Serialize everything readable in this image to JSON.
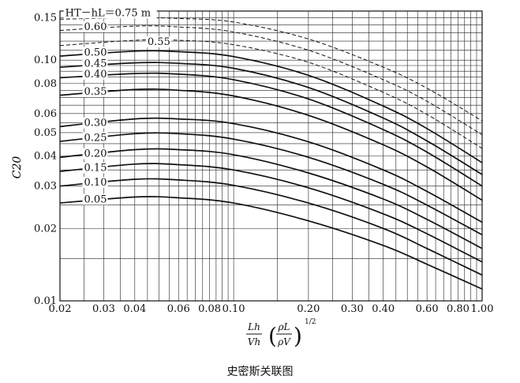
{
  "caption": "史密斯关联图",
  "chart_data": {
    "type": "line",
    "x_scale": "log",
    "y_scale": "log",
    "xlim": [
      0.02,
      1.0
    ],
    "ylim": [
      0.01,
      0.16
    ],
    "grid": true,
    "ylabel": "C20",
    "xlabel_parts": {
      "num": "Lh",
      "den": "Vh",
      "inner_num": "ρL",
      "inner_den": "ρV",
      "exponent": "1/2"
    },
    "x_ticks": [
      {
        "value": 0.02,
        "label": "0.02"
      },
      {
        "value": 0.03,
        "label": "0.03"
      },
      {
        "value": 0.04,
        "label": "0.04"
      },
      {
        "value": 0.06,
        "label": "0.06"
      },
      {
        "value": 0.08,
        "label": "0.08"
      },
      {
        "value": 0.1,
        "label": "0.10"
      },
      {
        "value": 0.2,
        "label": "0.20"
      },
      {
        "value": 0.3,
        "label": "0.30"
      },
      {
        "value": 0.4,
        "label": "0.40"
      },
      {
        "value": 0.6,
        "label": "0.60"
      },
      {
        "value": 0.8,
        "label": "0.80"
      },
      {
        "value": 1.0,
        "label": "1.00"
      }
    ],
    "y_ticks": [
      {
        "value": 0.15,
        "label": "0.15"
      },
      {
        "value": 0.1,
        "label": "0.10"
      },
      {
        "value": 0.08,
        "label": "0.08"
      },
      {
        "value": 0.06,
        "label": "0.06"
      },
      {
        "value": 0.05,
        "label": "0.05"
      },
      {
        "value": 0.04,
        "label": "0.04"
      },
      {
        "value": 0.03,
        "label": "0.03"
      },
      {
        "value": 0.02,
        "label": "0.02"
      },
      {
        "value": 0.01,
        "label": "0.01"
      }
    ],
    "series": [
      {
        "name": "0.05",
        "label": "0.05",
        "style": "solid",
        "points": [
          [
            0.02,
            0.0255
          ],
          [
            0.04,
            0.027
          ],
          [
            0.06,
            0.0268
          ],
          [
            0.1,
            0.0255
          ],
          [
            0.2,
            0.0215
          ],
          [
            0.4,
            0.017
          ],
          [
            0.6,
            0.0142
          ],
          [
            1.0,
            0.0112
          ]
        ]
      },
      {
        "name": "0.10",
        "label": "0.10",
        "style": "solid",
        "points": [
          [
            0.02,
            0.03
          ],
          [
            0.04,
            0.032
          ],
          [
            0.06,
            0.0318
          ],
          [
            0.1,
            0.0302
          ],
          [
            0.2,
            0.0255
          ],
          [
            0.4,
            0.02
          ],
          [
            0.6,
            0.0165
          ],
          [
            1.0,
            0.0128
          ]
        ]
      },
      {
        "name": "0.15",
        "label": "0.15",
        "style": "solid",
        "points": [
          [
            0.02,
            0.0345
          ],
          [
            0.04,
            0.037
          ],
          [
            0.06,
            0.0368
          ],
          [
            0.1,
            0.035
          ],
          [
            0.2,
            0.0295
          ],
          [
            0.4,
            0.023
          ],
          [
            0.6,
            0.019
          ],
          [
            1.0,
            0.0145
          ]
        ]
      },
      {
        "name": "0.20",
        "label": "0.20",
        "style": "solid",
        "points": [
          [
            0.02,
            0.0395
          ],
          [
            0.04,
            0.0425
          ],
          [
            0.06,
            0.0425
          ],
          [
            0.1,
            0.0405
          ],
          [
            0.2,
            0.034
          ],
          [
            0.4,
            0.0265
          ],
          [
            0.6,
            0.0218
          ],
          [
            1.0,
            0.0165
          ]
        ]
      },
      {
        "name": "0.25",
        "label": "0.25",
        "style": "solid",
        "points": [
          [
            0.02,
            0.046
          ],
          [
            0.04,
            0.0495
          ],
          [
            0.06,
            0.0495
          ],
          [
            0.1,
            0.047
          ],
          [
            0.2,
            0.0395
          ],
          [
            0.4,
            0.0305
          ],
          [
            0.6,
            0.025
          ],
          [
            1.0,
            0.0188
          ]
        ]
      },
      {
        "name": "0.30",
        "label": "0.30",
        "style": "solid",
        "points": [
          [
            0.02,
            0.053
          ],
          [
            0.04,
            0.057
          ],
          [
            0.06,
            0.057
          ],
          [
            0.1,
            0.0545
          ],
          [
            0.2,
            0.0458
          ],
          [
            0.4,
            0.035
          ],
          [
            0.6,
            0.0285
          ],
          [
            1.0,
            0.0212
          ]
        ]
      },
      {
        "name": "0.35",
        "label": "0.35",
        "style": "solid",
        "points": [
          [
            0.02,
            0.0715
          ],
          [
            0.04,
            0.0755
          ],
          [
            0.06,
            0.075
          ],
          [
            0.1,
            0.071
          ],
          [
            0.2,
            0.059
          ],
          [
            0.4,
            0.0445
          ],
          [
            0.6,
            0.036
          ],
          [
            1.0,
            0.0262
          ]
        ]
      },
      {
        "name": "0.40",
        "label": "0.40",
        "style": "solid",
        "points": [
          [
            0.02,
            0.0845
          ],
          [
            0.04,
            0.088
          ],
          [
            0.06,
            0.0875
          ],
          [
            0.1,
            0.083
          ],
          [
            0.2,
            0.069
          ],
          [
            0.4,
            0.0515
          ],
          [
            0.6,
            0.0415
          ],
          [
            1.0,
            0.03
          ]
        ]
      },
      {
        "name": "0.45",
        "label": "0.45",
        "style": "solid",
        "points": [
          [
            0.02,
            0.0935
          ],
          [
            0.04,
            0.0975
          ],
          [
            0.06,
            0.097
          ],
          [
            0.1,
            0.0925
          ],
          [
            0.2,
            0.077
          ],
          [
            0.4,
            0.0575
          ],
          [
            0.6,
            0.0462
          ],
          [
            1.0,
            0.0335
          ]
        ]
      },
      {
        "name": "0.50",
        "label": "0.50",
        "style": "solid",
        "points": [
          [
            0.02,
            0.104
          ],
          [
            0.04,
            0.109
          ],
          [
            0.06,
            0.1085
          ],
          [
            0.1,
            0.1035
          ],
          [
            0.2,
            0.0865
          ],
          [
            0.4,
            0.0645
          ],
          [
            0.6,
            0.052
          ],
          [
            1.0,
            0.0375
          ]
        ]
      },
      {
        "name": "0.55",
        "label": "0.55",
        "style": "dashed",
        "points": [
          [
            0.02,
            0.115
          ],
          [
            0.04,
            0.121
          ],
          [
            0.06,
            0.121
          ],
          [
            0.1,
            0.116
          ],
          [
            0.2,
            0.098
          ],
          [
            0.4,
            0.0735
          ],
          [
            0.6,
            0.0595
          ],
          [
            1.0,
            0.043
          ]
        ]
      },
      {
        "name": "0.60",
        "label": "0.60",
        "style": "dashed",
        "points": [
          [
            0.02,
            0.133
          ],
          [
            0.04,
            0.1385
          ],
          [
            0.06,
            0.1375
          ],
          [
            0.1,
            0.131
          ],
          [
            0.2,
            0.11
          ],
          [
            0.4,
            0.083
          ],
          [
            0.6,
            0.0675
          ],
          [
            1.0,
            0.049
          ]
        ]
      },
      {
        "name": "0.75 m",
        "label": "HT－hL＝0.75 m",
        "style": "dashed",
        "points": [
          [
            0.02,
            0.148
          ],
          [
            0.04,
            0.15
          ],
          [
            0.06,
            0.149
          ],
          [
            0.1,
            0.144
          ],
          [
            0.2,
            0.1225
          ],
          [
            0.4,
            0.0935
          ],
          [
            0.6,
            0.0765
          ],
          [
            1.0,
            0.056
          ]
        ]
      }
    ]
  }
}
